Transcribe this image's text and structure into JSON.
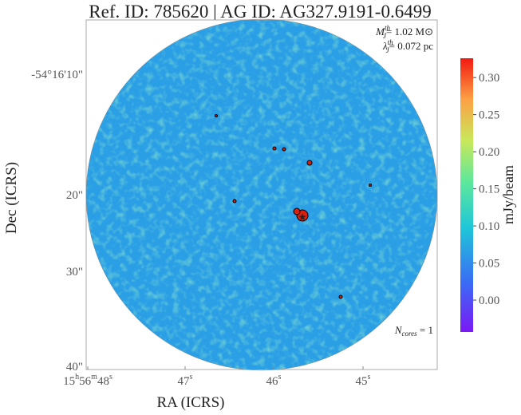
{
  "chart_data": {
    "type": "image",
    "title": "Ref. ID: 785620 | AG ID: AG327.9191-0.6499",
    "xlabel": "RA (ICRS)",
    "ylabel": "Dec (ICRS)",
    "ra_ticks": [
      [
        "15",
        "h",
        "56",
        "m",
        "48",
        "s"
      ],
      [
        "47",
        "s"
      ],
      [
        "46",
        "s"
      ],
      [
        "45",
        "s"
      ]
    ],
    "dec_ticks": [
      "-54°16'10\"",
      "20\"",
      "30\"",
      "40\""
    ],
    "colorbar_label": "mJy/beam",
    "clim": [
      -0.043,
      0.326
    ],
    "cticks": [
      {
        "value": 0,
        "label": "0.00"
      },
      {
        "value": 0.05,
        "label": "0.05"
      },
      {
        "value": 0.1,
        "label": "0.10"
      },
      {
        "value": 0.15,
        "label": "0.15"
      },
      {
        "value": 0.2,
        "label": "0.20"
      },
      {
        "value": 0.25,
        "label": "0.25"
      },
      {
        "value": 0.3,
        "label": "0.30"
      }
    ],
    "annotations": {
      "mass": {
        "symbol": "M",
        "sub": "J",
        "sup": "th",
        "text": "= 1.02 M⊙"
      },
      "length": {
        "symbol": "λ",
        "sub": "J",
        "sup": "th",
        "text": "= 0.072 pc"
      },
      "cores": {
        "symbol": "N",
        "sub": "cores",
        "text": " = 1"
      }
    }
  }
}
